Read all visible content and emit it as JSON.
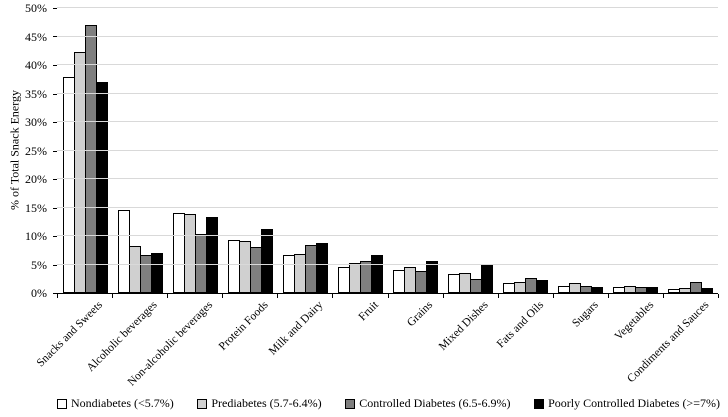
{
  "figure": {
    "background": "#ffffff"
  },
  "chart_data": {
    "type": "bar",
    "title": "",
    "xlabel": "",
    "ylabel": "% of Total Snack Energy",
    "ylim": [
      0,
      50
    ],
    "ytick_step": 5,
    "ytick_suffix": "%",
    "grid": true,
    "gridline_color": "#d9d9d9",
    "axis_color": "#000000",
    "legend_position": "bottom",
    "categories": [
      "Snacks and Sweets",
      "Alcoholic beverages",
      "Non-alcoholic beverages",
      "Protein Foods",
      "Milk and Dairy",
      "Fruit",
      "Grains",
      "Mixed Dishes",
      "Fats and Oils",
      "Sugars",
      "Vegetables",
      "Condiments and Sauces"
    ],
    "series": [
      {
        "name": "Nondiabetes (<5.7%)",
        "color": "#ffffff",
        "values": [
          37.9,
          14.5,
          14.1,
          9.3,
          6.7,
          4.5,
          4.0,
          3.4,
          1.7,
          1.3,
          1.0,
          0.7
        ]
      },
      {
        "name": "Prediabetes (5.7-6.4%)",
        "color": "#d0d0d0",
        "values": [
          42.2,
          8.2,
          13.9,
          9.1,
          6.8,
          5.3,
          4.5,
          3.5,
          1.9,
          1.7,
          1.2,
          0.9
        ]
      },
      {
        "name": "Controlled Diabetes (6.5-6.9%)",
        "color": "#7f7f7f",
        "values": [
          47.0,
          6.6,
          10.3,
          8.0,
          8.5,
          5.6,
          3.9,
          2.5,
          2.6,
          1.3,
          1.0,
          2.0
        ]
      },
      {
        "name": "Poorly Controlled Diabetes (>=7%)",
        "color": "#000000",
        "values": [
          37.1,
          7.0,
          13.3,
          11.2,
          8.8,
          6.6,
          5.6,
          5.0,
          2.2,
          1.0,
          1.1,
          0.8
        ]
      }
    ]
  }
}
